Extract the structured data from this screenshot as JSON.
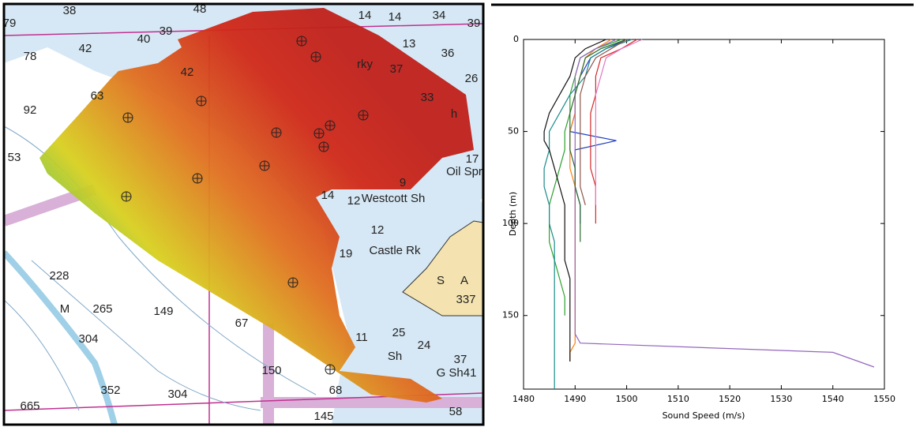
{
  "map": {
    "labels": [
      "38",
      "48",
      "14",
      "14",
      "34",
      "39",
      "79",
      "40",
      "39",
      "42",
      "78",
      "13",
      "36",
      "rky",
      "37",
      "42",
      "26",
      "63",
      "92",
      "33",
      "h",
      "53",
      "17",
      "Oil Spr",
      "9",
      "Westcott Sh",
      "12",
      "14",
      "12",
      "Castle Rk",
      "19",
      "S",
      "A",
      "337",
      "228",
      "M",
      "265",
      "149",
      "67",
      "304",
      "150",
      "11",
      "25",
      "24",
      "37",
      "G Sh41",
      "352",
      "304",
      "665",
      "145",
      "58",
      "68",
      "Sh"
    ]
  },
  "chart_data": {
    "type": "line",
    "xlabel": "Sound Speed (m/s)",
    "ylabel": "Depth (m)",
    "xlim": [
      1480,
      1550
    ],
    "xticks": [
      1480,
      1490,
      1500,
      1510,
      1520,
      1530,
      1540,
      1550
    ],
    "ylim": [
      0,
      190
    ],
    "yticks": [
      0,
      50,
      100,
      150
    ],
    "y_inverted": true,
    "depths": [
      0,
      5,
      10,
      20,
      30,
      40,
      50,
      55,
      60,
      70,
      80,
      90,
      100,
      110,
      120,
      130,
      140,
      150,
      160,
      165,
      170,
      175,
      178,
      190
    ],
    "series": [
      {
        "color": "#1f3fbf",
        "values": [
          1500,
          1496,
          1493,
          1491,
          1490,
          1490,
          1489,
          1498,
          1490,
          1490,
          1490,
          1491,
          1491,
          null,
          null,
          null,
          null,
          null,
          null,
          null,
          null,
          null,
          null,
          null
        ]
      },
      {
        "color": "#2ca02c",
        "values": [
          1499,
          1494,
          1491,
          1490,
          1489,
          1489,
          1488,
          1488,
          1488,
          1487,
          1486,
          1485,
          1485,
          1485,
          1486,
          1487,
          1488,
          1488,
          null,
          null,
          null,
          null,
          null,
          null
        ]
      },
      {
        "color": "#d62728",
        "values": [
          1502,
          1499,
          1495,
          1494,
          1494,
          1493,
          1493,
          1493,
          1493,
          1493,
          1494,
          1494,
          1494,
          null,
          null,
          null,
          null,
          null,
          null,
          null,
          null,
          null,
          null,
          null
        ]
      },
      {
        "color": "#ff7f0e",
        "values": [
          1497,
          1494,
          1492,
          1491,
          1490,
          1490,
          1489,
          1489,
          1489,
          1489,
          1490,
          1490,
          1490,
          1490,
          1490,
          1490,
          1490,
          1490,
          1490,
          1490,
          1489,
          1489,
          null,
          null
        ]
      },
      {
        "color": "#9467bd",
        "values": [
          1498,
          1494,
          1491,
          1490,
          1490,
          1490,
          1490,
          1490,
          1490,
          1490,
          1490,
          1490,
          1490,
          1490,
          1490,
          1490,
          1490,
          1490,
          1490,
          1491,
          1540,
          1545,
          1548,
          null
        ]
      },
      {
        "color": "#1a8a8a",
        "values": [
          1501,
          1496,
          1493,
          1492,
          1489,
          1487,
          1485,
          1485,
          1485,
          1484,
          1484,
          1485,
          1485,
          1486,
          1486,
          1486,
          1486,
          1486,
          1486,
          1486,
          1486,
          1486,
          1486,
          1486
        ]
      },
      {
        "color": "#111111",
        "values": [
          1496,
          1492,
          1490,
          1489,
          1487,
          1485,
          1484,
          1484,
          1485,
          1486,
          1487,
          1488,
          1488,
          1488,
          1488,
          1489,
          1489,
          1489,
          1489,
          1489,
          1489,
          1489,
          null,
          null
        ]
      },
      {
        "color": "#e377c2",
        "values": [
          1503,
          1499,
          1496,
          1495,
          1494,
          1494,
          1494,
          1494,
          1494,
          1494,
          1494,
          1494,
          null,
          null,
          null,
          null,
          null,
          null,
          null,
          null,
          null,
          null,
          null,
          null
        ]
      },
      {
        "color": "#2e6b2e",
        "values": [
          1500,
          1495,
          1492,
          1491,
          1490,
          1489,
          1489,
          1489,
          1489,
          1490,
          1490,
          1491,
          1491,
          1491,
          null,
          null,
          null,
          null,
          null,
          null,
          null,
          null,
          null,
          null
        ]
      },
      {
        "color": "#8c564b",
        "values": [
          1500,
          1497,
          1494,
          1492,
          1491,
          1491,
          1491,
          1491,
          1491,
          1491,
          1491,
          1492,
          null,
          null,
          null,
          null,
          null,
          null,
          null,
          null,
          null,
          null,
          null,
          null
        ]
      }
    ]
  }
}
